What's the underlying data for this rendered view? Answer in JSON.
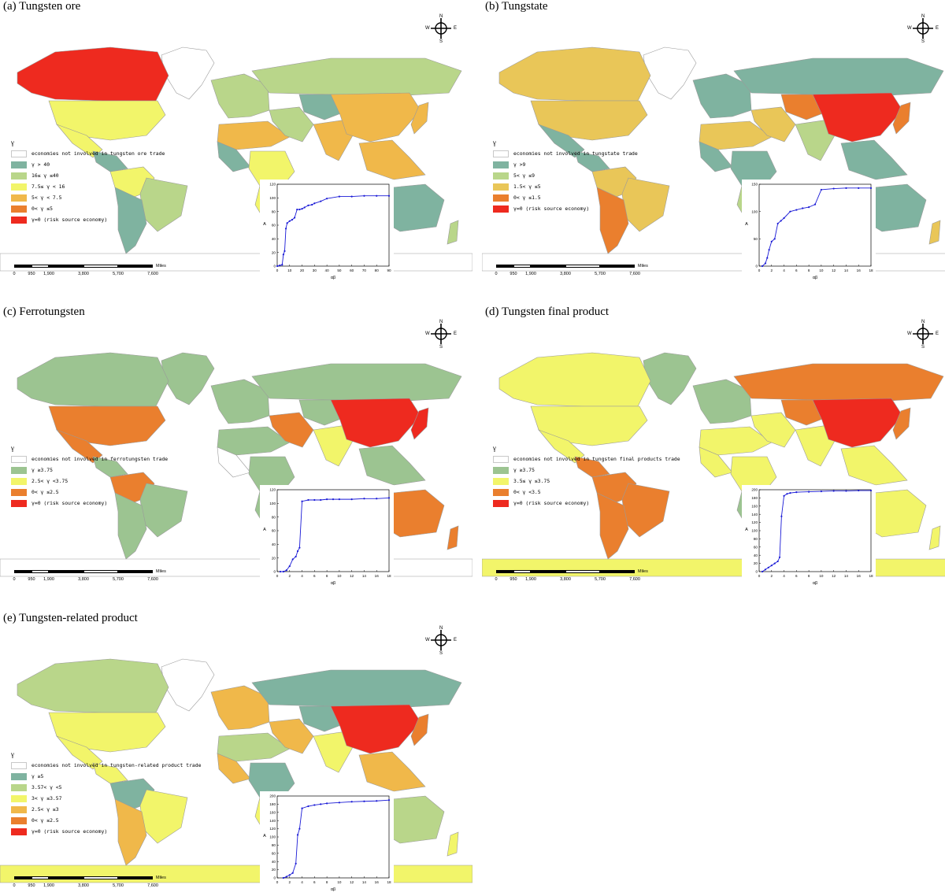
{
  "colors": {
    "ocean": "#ffffff",
    "land_outline": "#9a9a9a",
    "teal": "#7fb3a0",
    "light_green": "#b9d68a",
    "yellow": "#f2f56a",
    "light_orange": "#f0b84a",
    "orange": "#ea7f2e",
    "red": "#ee2a1f",
    "gold": "#e9c658",
    "curve": "#1a1ad6"
  },
  "scale": {
    "ticks": [
      "0",
      "950",
      "1,900",
      "3,800",
      "5,700",
      "7,600"
    ],
    "unit": "Miles"
  },
  "compass": {
    "n": "N",
    "s": "S",
    "w": "W",
    "e": "E"
  },
  "panels": [
    {
      "title": "(a) Tungsten ore",
      "legend": {
        "title": "γ",
        "items": [
          {
            "label": "economies not involved in tungsten ore trade",
            "color": "white"
          },
          {
            "label": "γ > 40",
            "color": "teal"
          },
          {
            "label": "16≤ γ ≤40",
            "color": "light_green"
          },
          {
            "label": "7.5≤ γ < 16",
            "color": "yellow"
          },
          {
            "label": "5< γ < 7.5",
            "color": "light_orange"
          },
          {
            "label": "0< γ ≤5",
            "color": "orange"
          },
          {
            "label": "γ=0 (risk source economy)",
            "color": "red"
          }
        ]
      },
      "regions": {
        "na_north": "red",
        "greenland": "white",
        "usa": "yellow",
        "mexico": "yellow",
        "central_am": "teal",
        "sa_north": "yellow",
        "brazil": "light_green",
        "sa_south": "teal",
        "europe": "light_green",
        "n_africa": "light_orange",
        "w_africa": "teal",
        "c_africa": "yellow",
        "s_africa": "yellow",
        "russia": "light_green",
        "mideast": "light_green",
        "india": "light_orange",
        "c_asia": "teal",
        "china": "light_orange",
        "se_asia": "light_orange",
        "japan": "light_orange",
        "australia": "teal",
        "nz": "light_green",
        "antarctica": "white"
      },
      "chart_data": {
        "type": "line",
        "xlabel": "αβ",
        "ylabel": "A",
        "x": [
          0,
          2,
          4,
          5,
          6,
          7,
          8,
          10,
          12,
          14,
          16,
          18,
          20,
          22,
          25,
          28,
          30,
          35,
          40,
          50,
          60,
          70,
          80,
          90
        ],
        "y": [
          0,
          1,
          2,
          17,
          22,
          55,
          63,
          66,
          68,
          71,
          83,
          83,
          84,
          86,
          89,
          90,
          92,
          95,
          99,
          102,
          102,
          103,
          103,
          103
        ],
        "xlim": [
          0,
          90
        ],
        "ylim": [
          0,
          120
        ],
        "xticks": [
          "0",
          "10",
          "20",
          "30",
          "40",
          "50",
          "60",
          "70",
          "80",
          "90"
        ],
        "yticks": [
          "0",
          "20",
          "40",
          "60",
          "80",
          "100",
          "120"
        ]
      }
    },
    {
      "title": "(b) Tungstate",
      "legend": {
        "title": "γ",
        "items": [
          {
            "label": "economies not involved in tungstate trade",
            "color": "white"
          },
          {
            "label": "γ >9",
            "color": "teal"
          },
          {
            "label": "5< γ ≤9",
            "color": "light_green"
          },
          {
            "label": "1.5< γ ≤5",
            "color": "gold"
          },
          {
            "label": "0< γ ≤1.5",
            "color": "orange"
          },
          {
            "label": "γ=0 (risk source economy)",
            "color": "red"
          }
        ]
      },
      "regions": {
        "na_north": "gold",
        "greenland": "white",
        "usa": "gold",
        "mexico": "teal",
        "central_am": "teal",
        "sa_north": "gold",
        "brazil": "gold",
        "sa_south": "orange",
        "europe": "teal",
        "n_africa": "gold",
        "w_africa": "teal",
        "c_africa": "teal",
        "s_africa": "light_green",
        "russia": "teal",
        "mideast": "gold",
        "india": "light_green",
        "c_asia": "orange",
        "china": "red",
        "se_asia": "teal",
        "japan": "orange",
        "australia": "teal",
        "nz": "gold",
        "antarctica": "white"
      },
      "chart_data": {
        "type": "line",
        "xlabel": "αβ",
        "ylabel": "A",
        "x": [
          0.5,
          1,
          1.3,
          1.6,
          2,
          2.5,
          3,
          3.5,
          4,
          5,
          6,
          7,
          8,
          9,
          10,
          12,
          14,
          16,
          18
        ],
        "y": [
          0,
          5,
          15,
          30,
          45,
          50,
          78,
          83,
          88,
          100,
          103,
          106,
          108,
          113,
          140,
          142,
          143,
          143,
          143
        ],
        "xlim": [
          0,
          18
        ],
        "ylim": [
          0,
          150
        ],
        "xticks": [
          "0",
          "2",
          "4",
          "6",
          "8",
          "10",
          "12",
          "14",
          "16",
          "18"
        ],
        "yticks": [
          "0",
          "50",
          "100",
          "150"
        ]
      }
    },
    {
      "title": "(c) Ferrotungsten",
      "legend": {
        "title": "γ",
        "items": [
          {
            "label": "economies not involved in ferrotungsten trade",
            "color": "white"
          },
          {
            "label": "γ ≥3.75",
            "color": "teal_light"
          },
          {
            "label": "2.5< γ <3.75",
            "color": "yellow"
          },
          {
            "label": "0< γ ≤2.5",
            "color": "orange"
          },
          {
            "label": "γ=0 (risk source economy)",
            "color": "red"
          }
        ]
      },
      "regions": {
        "na_north": "teal_light",
        "greenland": "teal_light",
        "usa": "orange",
        "mexico": "orange",
        "central_am": "teal_light",
        "sa_north": "orange",
        "brazil": "teal_light",
        "sa_south": "teal_light",
        "europe": "teal_light",
        "n_africa": "teal_light",
        "w_africa": "white",
        "c_africa": "teal_light",
        "s_africa": "teal_light",
        "russia": "teal_light",
        "mideast": "orange",
        "india": "yellow",
        "c_asia": "teal_light",
        "china": "red",
        "se_asia": "teal_light",
        "japan": "red",
        "australia": "orange",
        "nz": "orange",
        "antarctica": "white"
      },
      "chart_data": {
        "type": "line",
        "xlabel": "αβ",
        "ylabel": "A",
        "x": [
          0.5,
          1,
          1.5,
          2,
          2.5,
          3,
          3.3,
          3.6,
          4,
          5,
          6,
          7,
          8,
          9,
          10,
          12,
          14,
          16,
          18
        ],
        "y": [
          0,
          0,
          2,
          8,
          18,
          22,
          30,
          35,
          103,
          105,
          105,
          105,
          106,
          106,
          106,
          106,
          107,
          107,
          108
        ],
        "xlim": [
          0,
          18
        ],
        "ylim": [
          0,
          120
        ],
        "xticks": [
          "0",
          "2",
          "4",
          "6",
          "8",
          "10",
          "12",
          "14",
          "16",
          "18"
        ],
        "yticks": [
          "0",
          "20",
          "40",
          "60",
          "80",
          "100",
          "120"
        ]
      }
    },
    {
      "title": "(d) Tungsten final product",
      "legend": {
        "title": "γ",
        "items": [
          {
            "label": "economies not involved in tungsten final products trade",
            "color": "white"
          },
          {
            "label": "γ ≥3.75",
            "color": "teal_light"
          },
          {
            "label": "3.5≤ γ ≤3.75",
            "color": "yellow"
          },
          {
            "label": "0< γ <3.5",
            "color": "orange"
          },
          {
            "label": "γ=0 (risk source economy)",
            "color": "red"
          }
        ]
      },
      "regions": {
        "na_north": "yellow",
        "greenland": "teal_light",
        "usa": "yellow",
        "mexico": "yellow",
        "central_am": "orange",
        "sa_north": "orange",
        "brazil": "orange",
        "sa_south": "orange",
        "europe": "teal_light",
        "n_africa": "yellow",
        "w_africa": "yellow",
        "c_africa": "yellow",
        "s_africa": "teal_light",
        "russia": "orange",
        "mideast": "yellow",
        "india": "yellow",
        "c_asia": "orange",
        "china": "red",
        "se_asia": "yellow",
        "japan": "orange",
        "australia": "yellow",
        "nz": "yellow",
        "antarctica": "yellow"
      },
      "chart_data": {
        "type": "line",
        "xlabel": "αβ",
        "ylabel": "A",
        "x": [
          0.5,
          1,
          1.5,
          2,
          2.5,
          3,
          3.3,
          3.6,
          4,
          4.5,
          5,
          6,
          8,
          10,
          12,
          14,
          16,
          18
        ],
        "y": [
          0,
          5,
          10,
          15,
          20,
          25,
          35,
          135,
          185,
          190,
          192,
          194,
          195,
          196,
          197,
          197,
          198,
          198
        ],
        "xlim": [
          0,
          18
        ],
        "ylim": [
          0,
          200
        ],
        "xticks": [
          "0",
          "2",
          "4",
          "6",
          "8",
          "10",
          "12",
          "14",
          "16",
          "18"
        ],
        "yticks": [
          "0",
          "20",
          "40",
          "60",
          "80",
          "100",
          "120",
          "140",
          "160",
          "180",
          "200"
        ]
      }
    },
    {
      "title": "(e) Tungsten-related product",
      "legend": {
        "title": "γ",
        "items": [
          {
            "label": "economies not involved in tungsten-related product trade",
            "color": "white"
          },
          {
            "label": "γ ≥5",
            "color": "teal"
          },
          {
            "label": "3.57< γ <5",
            "color": "light_green"
          },
          {
            "label": "3< γ ≤3.57",
            "color": "yellow"
          },
          {
            "label": "2.5< γ ≤3",
            "color": "light_orange"
          },
          {
            "label": "0< γ ≤2.5",
            "color": "orange"
          },
          {
            "label": "γ=0 (risk source economy)",
            "color": "red"
          }
        ]
      },
      "regions": {
        "na_north": "light_green",
        "greenland": "white",
        "usa": "yellow",
        "mexico": "yellow",
        "central_am": "yellow",
        "sa_north": "teal",
        "brazil": "yellow",
        "sa_south": "light_orange",
        "europe": "light_orange",
        "n_africa": "light_green",
        "w_africa": "light_orange",
        "c_africa": "teal",
        "s_africa": "yellow",
        "russia": "teal",
        "mideast": "light_orange",
        "india": "yellow",
        "c_asia": "teal",
        "china": "red",
        "se_asia": "light_orange",
        "japan": "orange",
        "australia": "light_green",
        "nz": "yellow",
        "antarctica": "yellow"
      },
      "chart_data": {
        "type": "line",
        "xlabel": "αβ",
        "ylabel": "A",
        "x": [
          1,
          1.5,
          2,
          2.5,
          3,
          3.3,
          3.6,
          4,
          5,
          6,
          7,
          8,
          10,
          12,
          14,
          16,
          18
        ],
        "y": [
          0,
          3,
          7,
          12,
          35,
          105,
          120,
          170,
          175,
          178,
          180,
          182,
          184,
          186,
          187,
          188,
          190
        ],
        "xlim": [
          0,
          18
        ],
        "ylim": [
          0,
          200
        ],
        "xticks": [
          "0",
          "2",
          "4",
          "6",
          "8",
          "10",
          "12",
          "14",
          "16",
          "18"
        ],
        "yticks": [
          "0",
          "20",
          "40",
          "60",
          "80",
          "100",
          "120",
          "140",
          "160",
          "180",
          "200"
        ]
      }
    }
  ]
}
